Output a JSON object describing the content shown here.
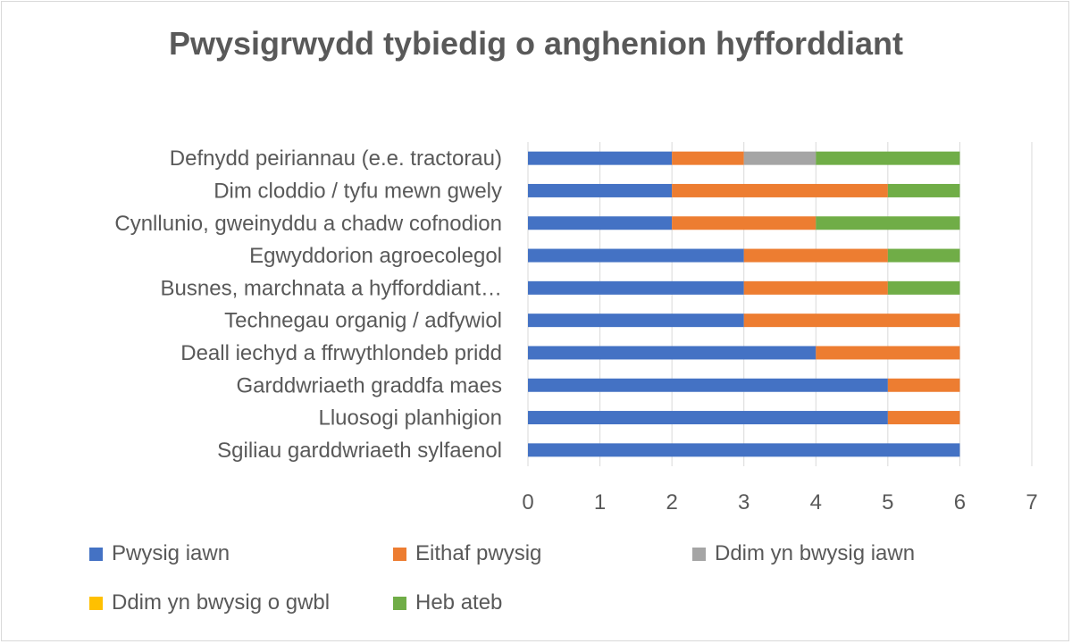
{
  "chart_data": {
    "type": "bar",
    "orientation": "horizontal",
    "stacked": true,
    "title": "Pwysigrwydd tybiedig o anghenion hyfforddiant",
    "categories": [
      "Sgiliau garddwriaeth sylfaenol",
      "Lluosogi planhigion",
      "Garddwriaeth graddfa maes",
      "Deall iechyd a ffrwythlondeb pridd",
      "Technegau organig / adfywiol",
      "Busnes, marchnata a hyfforddiant…",
      "Egwyddorion agroecolegol",
      "Cynllunio, gweinyddu a chadw cofnodion",
      "Dim cloddio / tyfu mewn gwely ",
      "Defnydd peiriannau (e.e. tractorau)"
    ],
    "series": [
      {
        "name": "Pwysig iawn",
        "color": "#4472C4",
        "values": [
          6,
          5,
          5,
          4,
          3,
          3,
          3,
          2,
          2,
          2
        ]
      },
      {
        "name": "Eithaf pwysig",
        "color": "#ED7D31",
        "values": [
          0,
          1,
          1,
          2,
          3,
          2,
          2,
          2,
          3,
          1
        ]
      },
      {
        "name": "Ddim yn bwysig iawn",
        "color": "#A5A5A5",
        "values": [
          0,
          0,
          0,
          0,
          0,
          0,
          0,
          0,
          0,
          1
        ]
      },
      {
        "name": "Ddim yn bwysig o gwbl",
        "color": "#FFC000",
        "values": [
          0,
          0,
          0,
          0,
          0,
          0,
          0,
          0,
          0,
          0
        ]
      },
      {
        "name": "Heb ateb",
        "color": "#70AD47",
        "values": [
          0,
          0,
          0,
          0,
          0,
          1,
          1,
          2,
          1,
          2
        ]
      }
    ],
    "xlim": [
      0,
      7
    ],
    "xticks": [
      "0",
      "1",
      "2",
      "3",
      "4",
      "5",
      "6",
      "7"
    ],
    "grid": true,
    "legend_position": "bottom"
  }
}
